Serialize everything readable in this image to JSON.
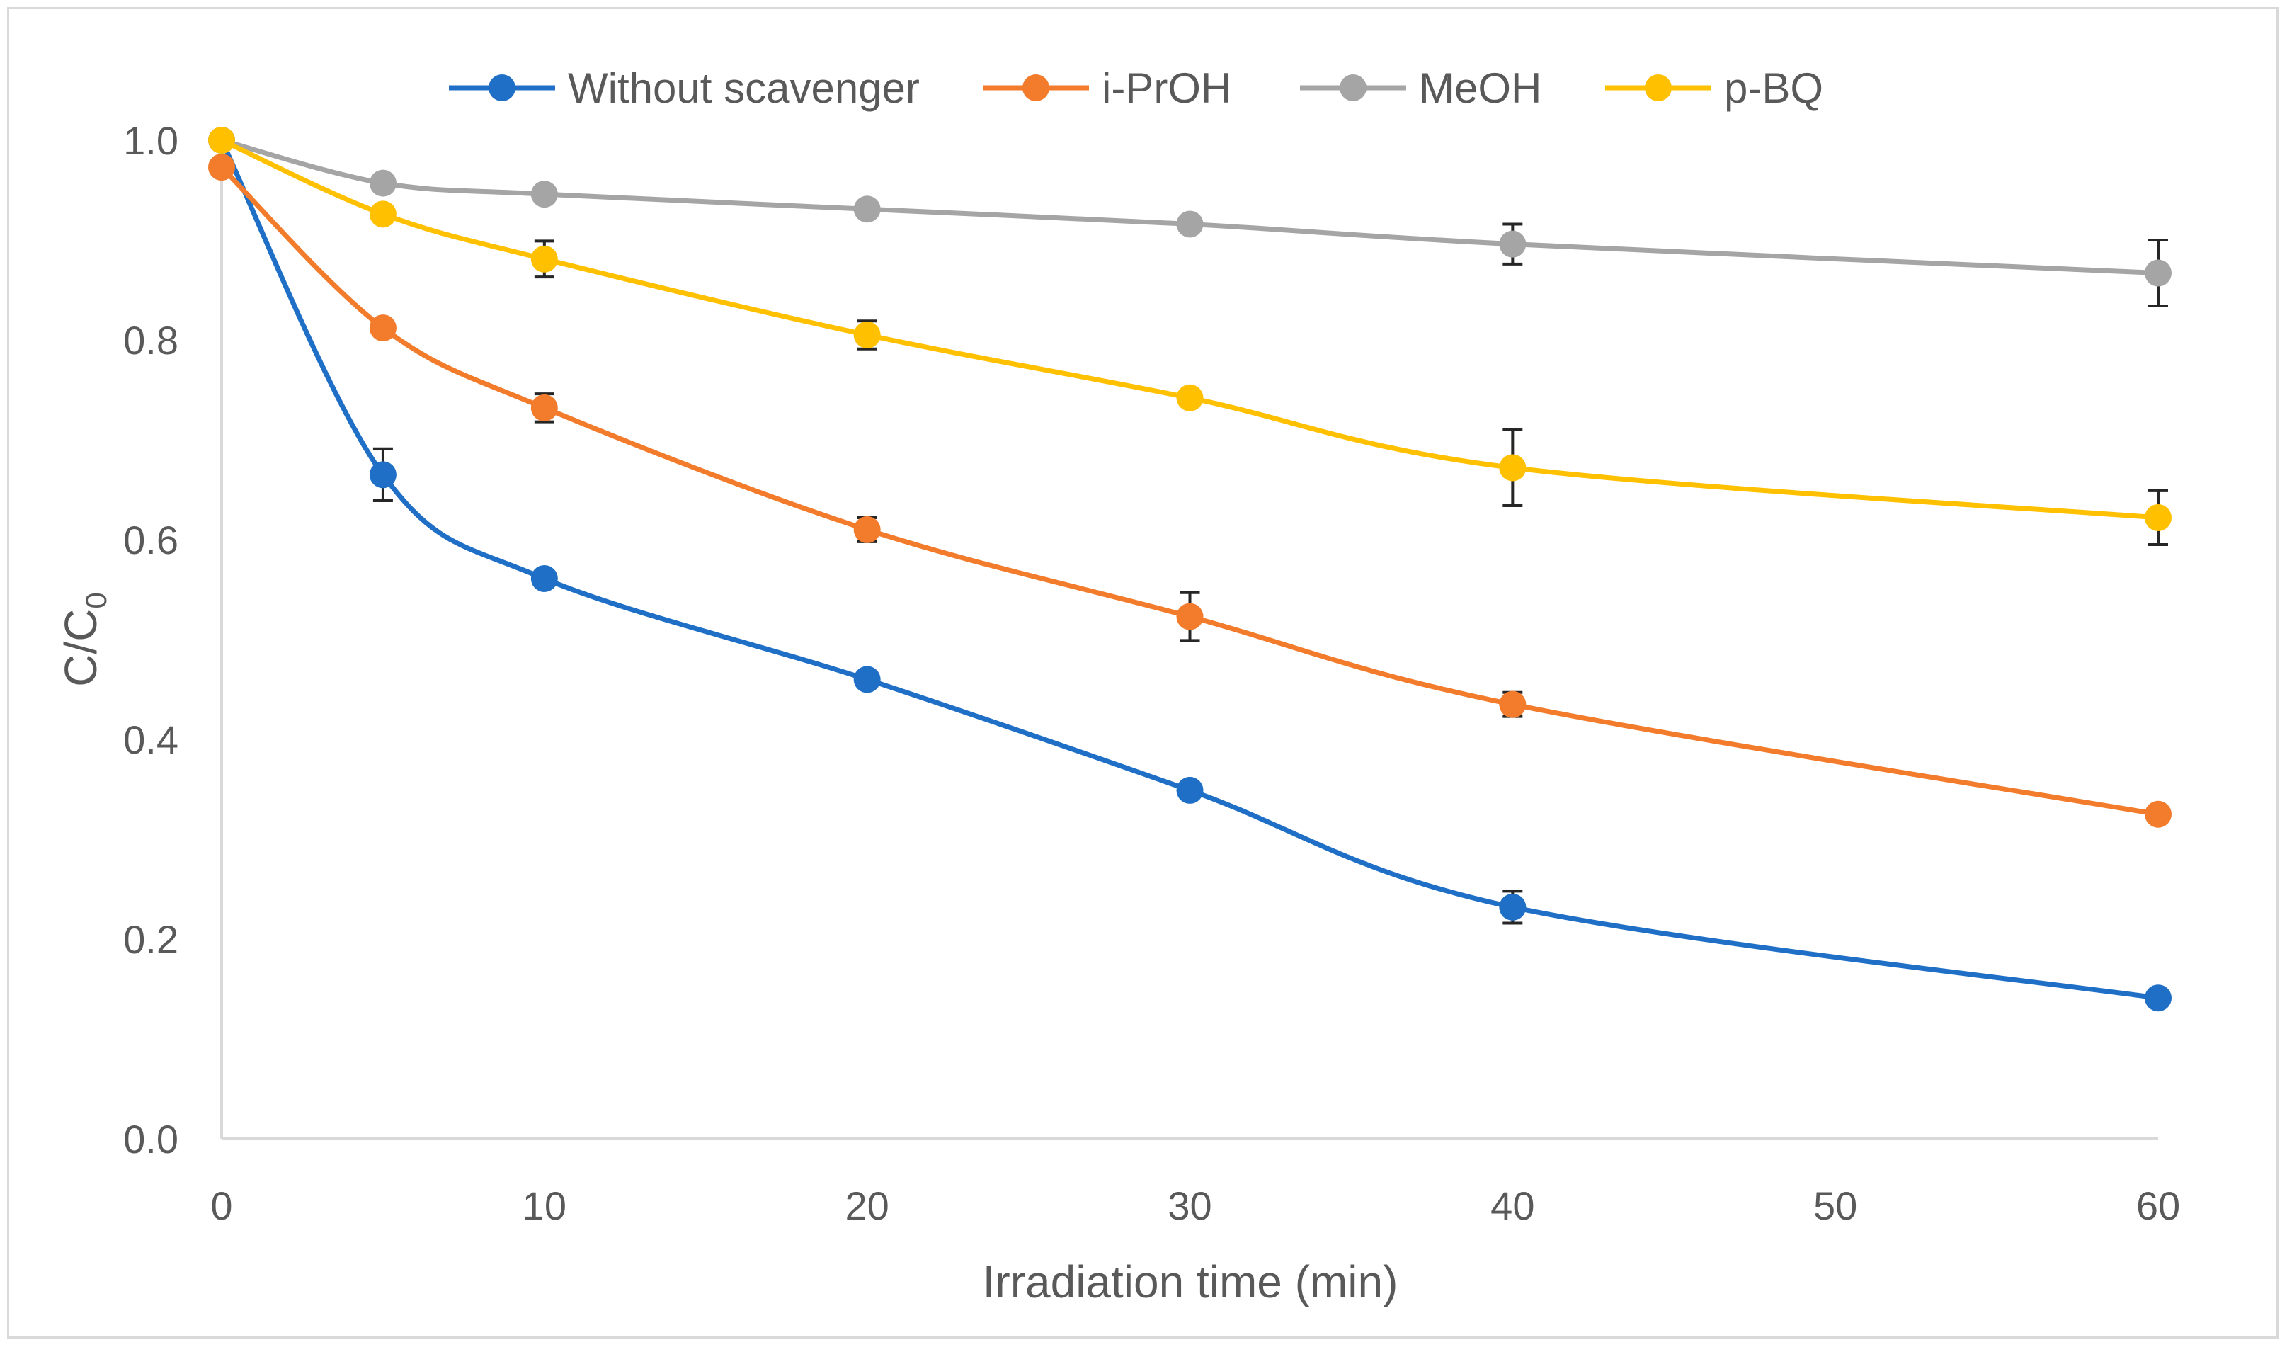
{
  "chart_data": {
    "type": "line",
    "title": "",
    "xlabel": "Irradiation time (min)",
    "ylabel_main": "C/C",
    "ylabel_sub": "0",
    "xlim": [
      0,
      60
    ],
    "ylim": [
      0,
      1.0
    ],
    "x_ticks": [
      "0",
      "10",
      "20",
      "30",
      "40",
      "50",
      "60"
    ],
    "x_tick_values": [
      0,
      10,
      20,
      30,
      40,
      50,
      60
    ],
    "y_ticks": [
      "0.0",
      "0.2",
      "0.4",
      "0.6",
      "0.8",
      "1.0"
    ],
    "y_tick_values": [
      0,
      0.2,
      0.4,
      0.6,
      0.8,
      1.0
    ],
    "grid": false,
    "legend_position": "top-center",
    "x": [
      0,
      5,
      10,
      20,
      30,
      40,
      60
    ],
    "series": [
      {
        "name": "Without scavenger",
        "color": "#1f6fc6",
        "values": [
          1.0,
          0.665,
          0.561,
          0.46,
          0.349,
          0.232,
          0.141
        ],
        "errors": [
          0,
          0.026,
          0,
          0,
          0,
          0.016,
          0
        ]
      },
      {
        "name": "i-PrOH",
        "color": "#f27b2c",
        "values": [
          0.973,
          0.812,
          0.732,
          0.61,
          0.523,
          0.435,
          0.325
        ],
        "errors": [
          0,
          0,
          0.014,
          0.012,
          0.024,
          0.012,
          0
        ]
      },
      {
        "name": "MeOH",
        "color": "#a5a5a5",
        "values": [
          1.0,
          0.957,
          0.946,
          0.931,
          0.916,
          0.896,
          0.867
        ],
        "errors": [
          0,
          0,
          0,
          0,
          0,
          0.02,
          0.033
        ]
      },
      {
        "name": "p-BQ",
        "color": "#ffc000",
        "values": [
          1.0,
          0.926,
          0.881,
          0.805,
          0.742,
          0.672,
          0.622
        ],
        "errors": [
          0,
          0,
          0.018,
          0.014,
          0,
          0.038,
          0.027
        ]
      }
    ]
  }
}
